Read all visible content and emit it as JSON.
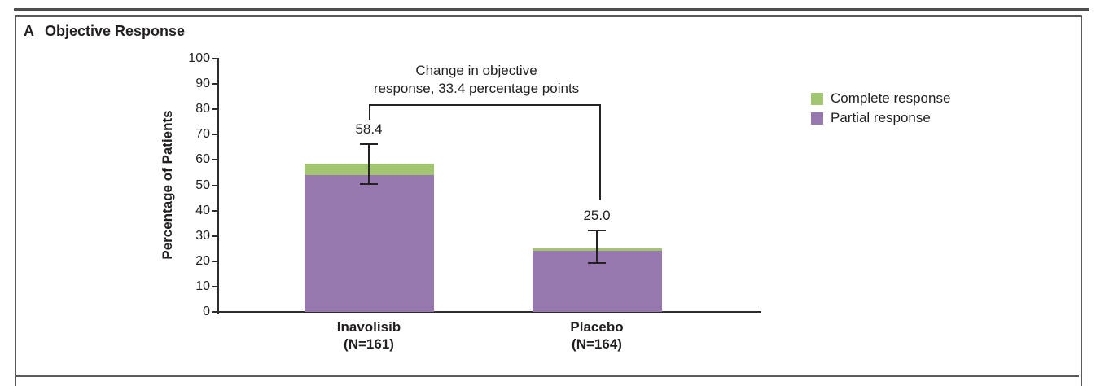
{
  "panel": {
    "label": "A",
    "title": "Objective Response"
  },
  "chart_data": {
    "type": "bar",
    "stacked": true,
    "title": "Objective Response",
    "xlabel": "",
    "ylabel": "Percentage of Patients",
    "ylim": [
      0,
      100
    ],
    "ytick_step": 10,
    "grid": false,
    "legend_position": "right",
    "categories": [
      {
        "name": "Inavolisib",
        "n": "(N=161)"
      },
      {
        "name": "Placebo",
        "n": "(N=164)"
      }
    ],
    "series": [
      {
        "name": "Complete response",
        "color": "#a2c572",
        "values": [
          4.4,
          0.8
        ]
      },
      {
        "name": "Partial response",
        "color": "#9677ae",
        "values": [
          54.0,
          24.2
        ]
      }
    ],
    "totals": [
      58.4,
      25.0
    ],
    "total_labels": [
      "58.4",
      "25.0"
    ],
    "error_bars": [
      {
        "low": 50.2,
        "high": 66.6
      },
      {
        "low": 19.0,
        "high": 32.5
      }
    ],
    "annotation": {
      "line1": "Change in objective",
      "line2": "response, 33.4 percentage points"
    },
    "legend": [
      {
        "label": "Complete response",
        "color": "#a2c572"
      },
      {
        "label": "Partial response",
        "color": "#9677ae"
      }
    ]
  }
}
